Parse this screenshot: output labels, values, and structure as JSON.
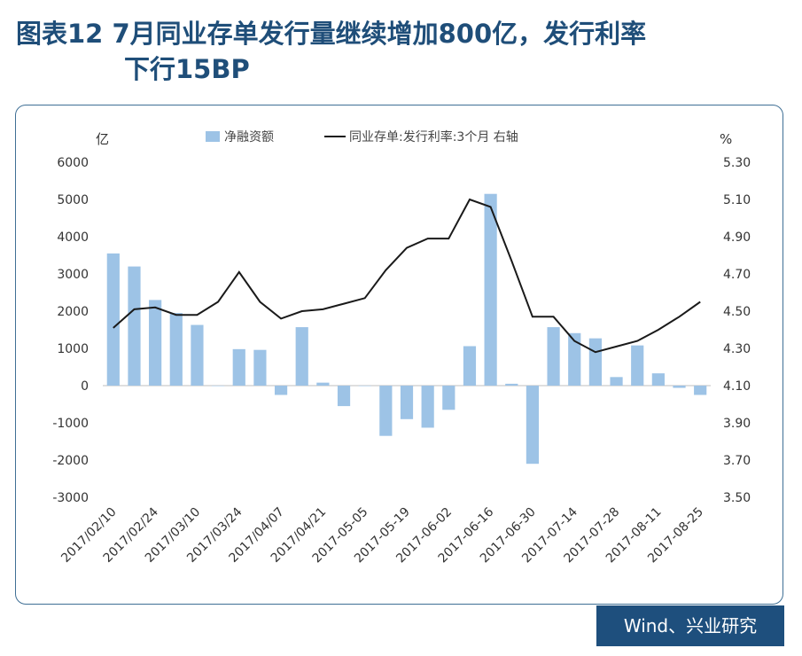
{
  "title_line1": "图表12  7月同业存单发行量继续增加800亿，发行利率",
  "title_line2": "下行15BP",
  "source": "Wind、兴业研究",
  "colors": {
    "bar": "#9dc3e6",
    "line": "#1a1a1a",
    "title": "#1f4e79",
    "source_bg": "#1e4f7d"
  },
  "chart_data": {
    "type": "bar",
    "legend": {
      "bar_label": "净融资额",
      "line_label": "同业存单:发行利率:3个月  右轴",
      "placement": "top"
    },
    "left_unit": "亿",
    "right_unit": "%",
    "ylim": [
      -3000,
      6000
    ],
    "y2lim": [
      3.5,
      5.3
    ],
    "y_ticks": [
      "6000",
      "5000",
      "4000",
      "3000",
      "2000",
      "1000",
      "0",
      "-1000",
      "-2000",
      "-3000"
    ],
    "y2_ticks": [
      "5.30",
      "5.10",
      "4.90",
      "4.70",
      "4.50",
      "4.30",
      "4.10",
      "3.90",
      "3.70",
      "3.50"
    ],
    "x_tick_labels": [
      "2017/02/10",
      "2017/02/24",
      "2017/03/10",
      "2017/03/24",
      "2017/04/07",
      "2017/04/21",
      "2017-05-05",
      "2017-05-19",
      "2017-06-02",
      "2017-06-16",
      "2017-06-30",
      "2017-07-14",
      "2017-07-28",
      "2017-08-11",
      "2017-08-25"
    ],
    "series": [
      {
        "name": "净融资额",
        "type": "bar",
        "values": [
          3550,
          3200,
          2300,
          1950,
          1630,
          0,
          980,
          960,
          -250,
          1570,
          80,
          -550,
          0,
          -1350,
          -900,
          -1130,
          -650,
          1060,
          5150,
          50,
          -2100,
          1570,
          1410,
          1270,
          230,
          1080,
          330,
          -60,
          -250
        ]
      },
      {
        "name": "同业存单:发行利率:3个月",
        "type": "line",
        "axis": "right",
        "values": [
          4.41,
          4.51,
          4.52,
          4.48,
          4.48,
          4.55,
          4.71,
          4.55,
          4.46,
          4.5,
          4.51,
          4.54,
          4.57,
          4.72,
          4.84,
          4.89,
          4.89,
          5.1,
          5.06,
          4.77,
          4.47,
          4.47,
          4.34,
          4.28,
          4.31,
          4.34,
          4.4,
          4.47,
          4.55
        ]
      }
    ],
    "grid": false
  }
}
